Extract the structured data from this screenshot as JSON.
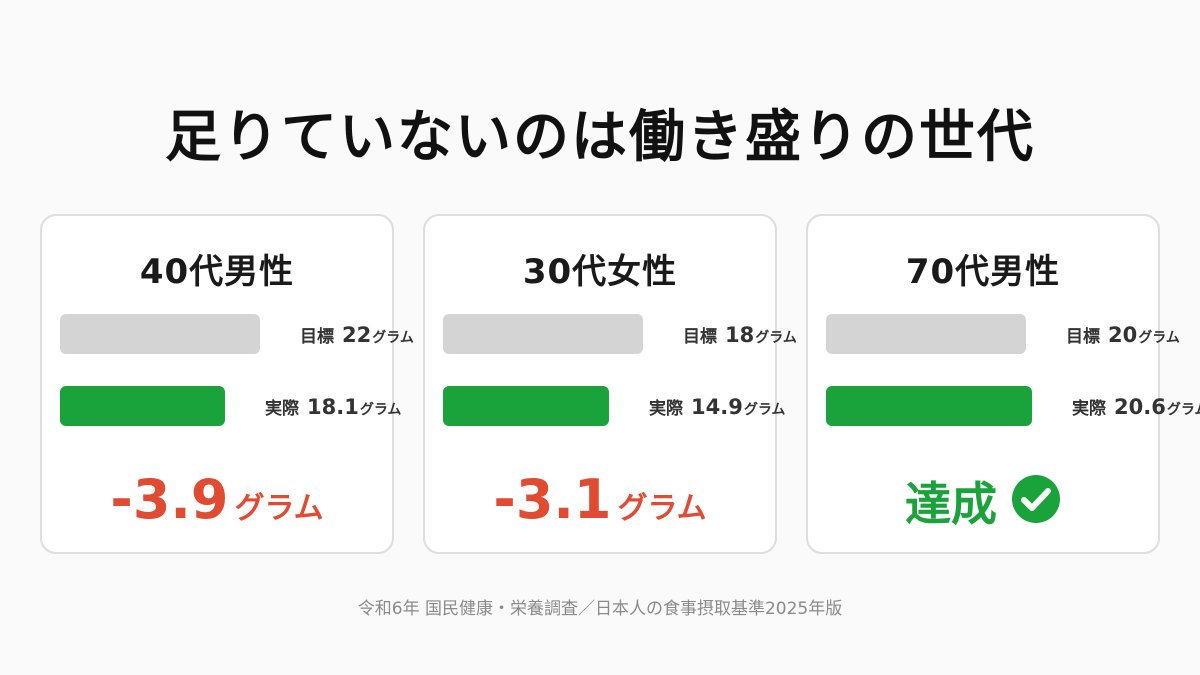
{
  "title": "足りていないのは働き盛りの世代",
  "footer": "令和6年 国民健康・栄養調査／日本人の食事摂取基準2025年版",
  "colors": {
    "target_bar": "#d4d4d4",
    "actual_bar": "#1aa33a",
    "shortfall": "#e04b32",
    "achieved": "#1aa33a"
  },
  "chart_data": [
    {
      "type": "bar",
      "title": "40代男性",
      "target": {
        "label": "目標",
        "value": 22,
        "value_text": "22",
        "unit": "グラム"
      },
      "actual": {
        "label": "実際",
        "value": 18.1,
        "value_text": "18.1",
        "unit": "グラム"
      },
      "result": {
        "kind": "shortfall",
        "text": "-3.9",
        "unit": "グラム"
      }
    },
    {
      "type": "bar",
      "title": "30代女性",
      "target": {
        "label": "目標",
        "value": 18,
        "value_text": "18",
        "unit": "グラム"
      },
      "actual": {
        "label": "実際",
        "value": 14.9,
        "value_text": "14.9",
        "unit": "グラム"
      },
      "result": {
        "kind": "shortfall",
        "text": "-3.1",
        "unit": "グラム"
      }
    },
    {
      "type": "bar",
      "title": "70代男性",
      "target": {
        "label": "目標",
        "value": 20,
        "value_text": "20",
        "unit": "グラム"
      },
      "actual": {
        "label": "実際",
        "value": 20.6,
        "value_text": "20.6",
        "unit": "グラム"
      },
      "result": {
        "kind": "achieved",
        "text": "達成",
        "icon": "check-circle-icon"
      }
    }
  ]
}
